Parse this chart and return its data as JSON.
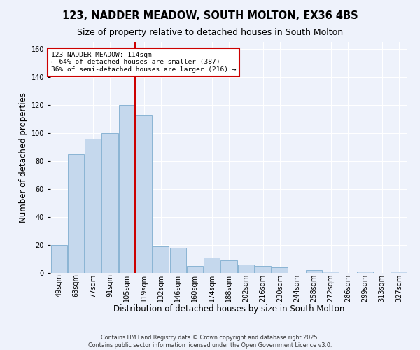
{
  "title": "123, NADDER MEADOW, SOUTH MOLTON, EX36 4BS",
  "subtitle": "Size of property relative to detached houses in South Molton",
  "xlabel": "Distribution of detached houses by size in South Molton",
  "ylabel": "Number of detached properties",
  "categories": [
    "49sqm",
    "63sqm",
    "77sqm",
    "91sqm",
    "105sqm",
    "119sqm",
    "132sqm",
    "146sqm",
    "160sqm",
    "174sqm",
    "188sqm",
    "202sqm",
    "216sqm",
    "230sqm",
    "244sqm",
    "258sqm",
    "272sqm",
    "286sqm",
    "299sqm",
    "313sqm",
    "327sqm"
  ],
  "values": [
    20,
    85,
    96,
    100,
    120,
    113,
    19,
    18,
    5,
    11,
    9,
    6,
    5,
    4,
    0,
    2,
    1,
    0,
    1,
    0,
    1
  ],
  "bar_color": "#c5d8ed",
  "bar_edge_color": "#8ab4d4",
  "background_color": "#eef2fb",
  "grid_color": "#ffffff",
  "vline_x_index": 4.5,
  "vline_color": "#cc0000",
  "annotation_text": "123 NADDER MEADOW: 114sqm\n← 64% of detached houses are smaller (387)\n36% of semi-detached houses are larger (216) →",
  "annotation_box_color": "#ffffff",
  "annotation_box_edge_color": "#cc0000",
  "ylim": [
    0,
    165
  ],
  "yticks": [
    0,
    20,
    40,
    60,
    80,
    100,
    120,
    140,
    160
  ],
  "footer1": "Contains HM Land Registry data © Crown copyright and database right 2025.",
  "footer2": "Contains public sector information licensed under the Open Government Licence v3.0.",
  "title_fontsize": 10.5,
  "subtitle_fontsize": 9,
  "tick_fontsize": 7,
  "axis_label_fontsize": 8.5,
  "footer_fontsize": 5.8
}
